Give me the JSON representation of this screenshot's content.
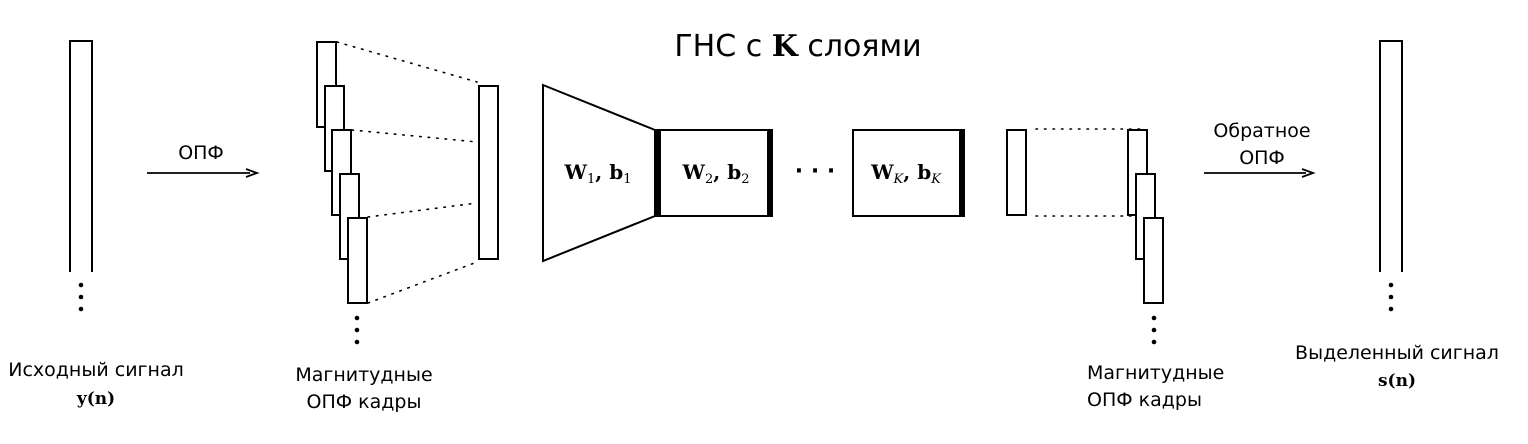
{
  "title": {
    "prefix": "ГНС с ",
    "symbol": "K",
    "suffix": " слоями"
  },
  "input": {
    "label": "Исходный сигнал",
    "symbol": "y(n)"
  },
  "stft_arrow": {
    "label": "ОПФ"
  },
  "stft_frames_left": {
    "line1": "Магнитудные",
    "line2": "ОПФ кадры"
  },
  "layers": [
    {
      "w": "W",
      "w_sub": "1",
      "b": "b",
      "b_sub": "1"
    },
    {
      "w": "W",
      "w_sub": "2",
      "b": "b",
      "b_sub": "2"
    },
    {
      "w": "W",
      "w_sub": "K",
      "b": "b",
      "b_sub": "K"
    }
  ],
  "ellipsis": "· · ·",
  "stft_frames_right": {
    "line1": "Магнитудные",
    "line2": "ОПФ кадры"
  },
  "istft_arrow": {
    "line1": "Обратное",
    "line2": "ОПФ"
  },
  "output": {
    "label": "Выделенный сигнал",
    "symbol": "s(n)"
  }
}
